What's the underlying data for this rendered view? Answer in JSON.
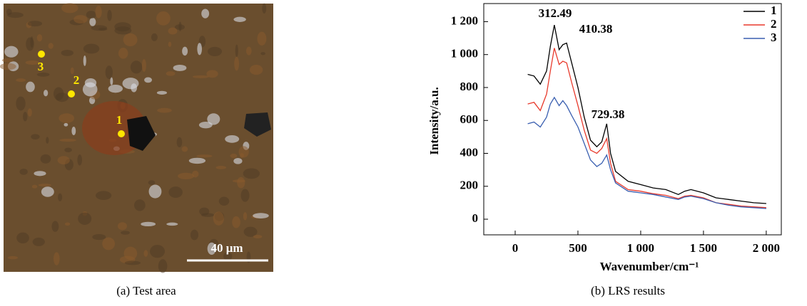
{
  "image_panel": {
    "point_labels": [
      "1",
      "2",
      "3"
    ],
    "scale_bar": "40 μm",
    "caption": "(a) Test area"
  },
  "chart_data": {
    "type": "line",
    "caption": "(b) LRS results",
    "x_label": "Wavenumber/cm⁻¹",
    "y_label": "Intensity/a.u.",
    "annotations": [
      "312.49",
      "410.38",
      "729.38"
    ],
    "x": [
      100,
      150,
      200,
      250,
      280,
      312,
      350,
      380,
      410,
      450,
      500,
      550,
      600,
      650,
      690,
      729,
      760,
      800,
      900,
      1000,
      1100,
      1200,
      1300,
      1350,
      1400,
      1500,
      1600,
      1700,
      1800,
      1900,
      2000
    ],
    "series": [
      {
        "name": "1",
        "color": "#000000",
        "values": [
          880,
          870,
          820,
          900,
          1050,
          1180,
          1030,
          1060,
          1070,
          950,
          800,
          620,
          480,
          440,
          470,
          580,
          400,
          290,
          230,
          210,
          190,
          180,
          150,
          170,
          180,
          160,
          130,
          120,
          110,
          100,
          95
        ]
      },
      {
        "name": "2",
        "color": "#e8392b",
        "values": [
          700,
          710,
          660,
          760,
          900,
          1040,
          940,
          960,
          950,
          830,
          690,
          540,
          420,
          400,
          430,
          490,
          340,
          230,
          180,
          170,
          155,
          145,
          125,
          140,
          145,
          130,
          100,
          90,
          80,
          75,
          70
        ]
      },
      {
        "name": "3",
        "color": "#3a5fb0",
        "values": [
          580,
          590,
          560,
          620,
          700,
          740,
          690,
          720,
          690,
          630,
          560,
          460,
          360,
          320,
          340,
          390,
          300,
          220,
          170,
          160,
          150,
          135,
          120,
          135,
          140,
          125,
          100,
          85,
          75,
          70,
          65
        ]
      }
    ],
    "xlim": [
      -250,
      2120
    ],
    "ylim": [
      -95,
      1310
    ],
    "xticks": [
      0,
      500,
      {
        "value": 1000,
        "label": "1 000"
      },
      {
        "value": 1500,
        "label": "1 500"
      },
      {
        "value": 2000,
        "label": "2 000"
      }
    ],
    "yticks": [
      0,
      200,
      400,
      600,
      800,
      {
        "value": 1000,
        "label": "1 000"
      },
      {
        "value": 1200,
        "label": "1 200"
      }
    ],
    "legend": "upper right"
  }
}
